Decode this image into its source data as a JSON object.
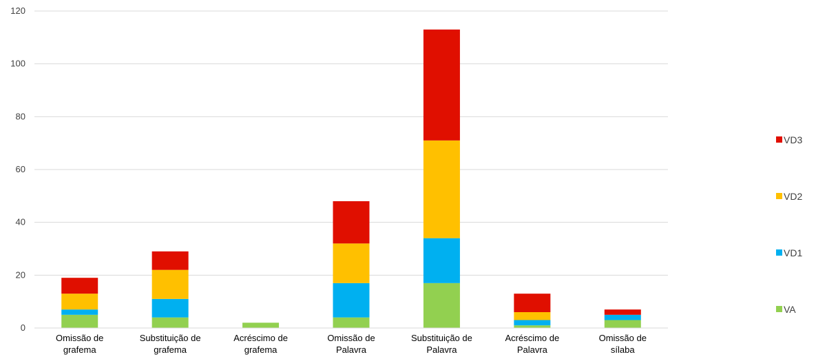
{
  "chart_data": {
    "type": "bar",
    "stacked": true,
    "categories": [
      [
        "Omissão de",
        "grafema"
      ],
      [
        "Substituição de",
        "grafema"
      ],
      [
        "Acréscimo de",
        "grafema"
      ],
      [
        "Omissão de",
        "Palavra"
      ],
      [
        "Substituição de",
        "Palavra"
      ],
      [
        "Acréscimo de",
        "Palavra"
      ],
      [
        "Omissão de",
        "sílaba"
      ]
    ],
    "series": [
      {
        "name": "VA",
        "color": "#92d050",
        "values": [
          5,
          4,
          2,
          4,
          17,
          1,
          3
        ]
      },
      {
        "name": "VD1",
        "color": "#00b0f0",
        "values": [
          2,
          7,
          0,
          13,
          17,
          2,
          2
        ]
      },
      {
        "name": "VD2",
        "color": "#ffc000",
        "values": [
          6,
          11,
          0,
          15,
          37,
          3,
          0
        ]
      },
      {
        "name": "VD3",
        "color": "#e00f00",
        "values": [
          6,
          7,
          0,
          16,
          42,
          7,
          2
        ]
      }
    ],
    "ylim": [
      0,
      120
    ],
    "yticks": [
      0,
      20,
      40,
      60,
      80,
      100,
      120
    ],
    "grid": true,
    "legend_position": "right",
    "legend_order": [
      "VD3",
      "VD2",
      "VD1",
      "VA"
    ]
  }
}
